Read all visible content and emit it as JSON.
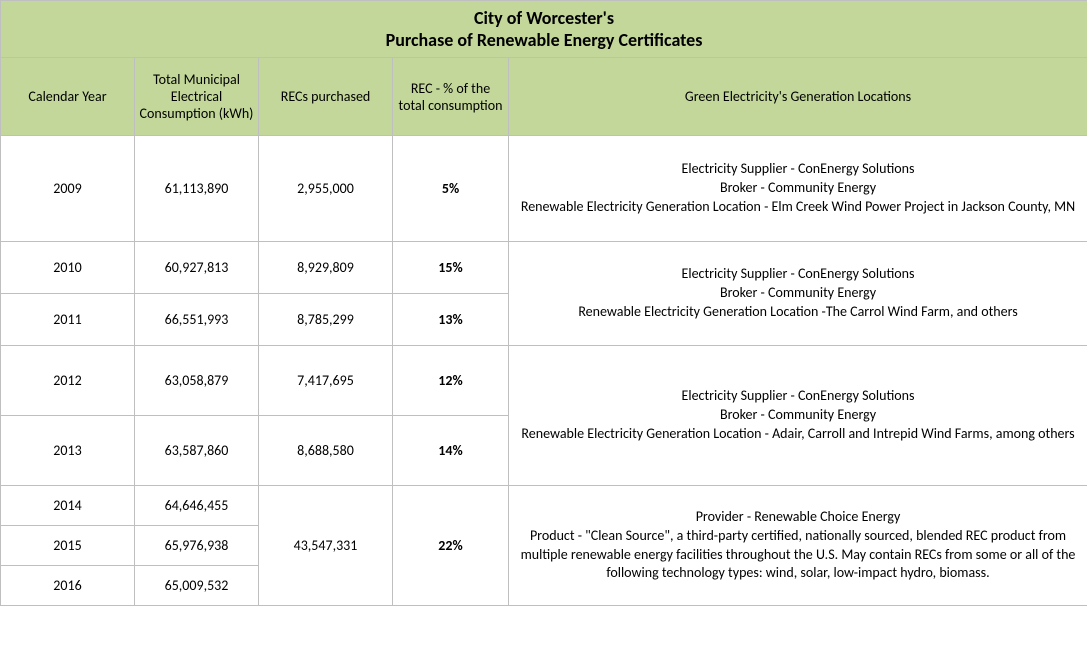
{
  "title_line1": "City of Worcester's",
  "title_line2": "Purchase of Renewable Energy Certificates",
  "headers": {
    "year": "Calendar Year",
    "consumption": "Total Municipal Electrical Consumption (kWh)",
    "recs": "RECs purchased",
    "pct": "REC - % of the total consumption",
    "locations": "Green Electricity's Generation Locations"
  },
  "rows": [
    {
      "year": "2009",
      "consumption": "61,113,890",
      "recs": "2,955,000",
      "pct": "5%",
      "location": "Electricity Supplier - ConEnergy Solutions\nBroker - Community Energy\nRenewable Electricity Generation Location - Elm Creek Wind Power Project in Jackson County, MN"
    },
    {
      "year": "2010",
      "consumption": "60,927,813",
      "recs": "8,929,809",
      "pct": "15%"
    },
    {
      "year": "2011",
      "consumption": "66,551,993",
      "recs": "8,785,299",
      "pct": "13%",
      "location_group": "Electricity Supplier - ConEnergy Solutions\nBroker - Community Energy\nRenewable Electricity Generation Location -The Carrol Wind Farm, and others"
    },
    {
      "year": "2012",
      "consumption": "63,058,879",
      "recs": "7,417,695",
      "pct": "12%"
    },
    {
      "year": "2013",
      "consumption": "63,587,860",
      "recs": "8,688,580",
      "pct": "14%",
      "location_group": "Electricity Supplier - ConEnergy Solutions\nBroker - Community Energy\nRenewable Electricity Generation Location - Adair, Carroll and Intrepid Wind Farms, among others"
    },
    {
      "year": "2014",
      "consumption": "64,646,455"
    },
    {
      "year": "2015",
      "consumption": "65,976,938",
      "recs_group": "43,547,331",
      "pct_group": "22%",
      "location_group": "Provider - Renewable Choice Energy\nProduct - \"Clean Source\", a third-party certified, nationally sourced, blended REC product from multiple renewable energy facilities throughout the U.S. May contain RECs from some or all of the following technology types: wind, solar, low-impact hydro, biomass."
    },
    {
      "year": "2016",
      "consumption": "65,009,532"
    }
  ],
  "colors": {
    "header_bg": "#c3d79a",
    "border": "#bfbfbf",
    "text": "#000000",
    "background": "#ffffff"
  },
  "fonts": {
    "family": "Calibri",
    "title_size_pt": 14,
    "body_size_pt": 11
  }
}
